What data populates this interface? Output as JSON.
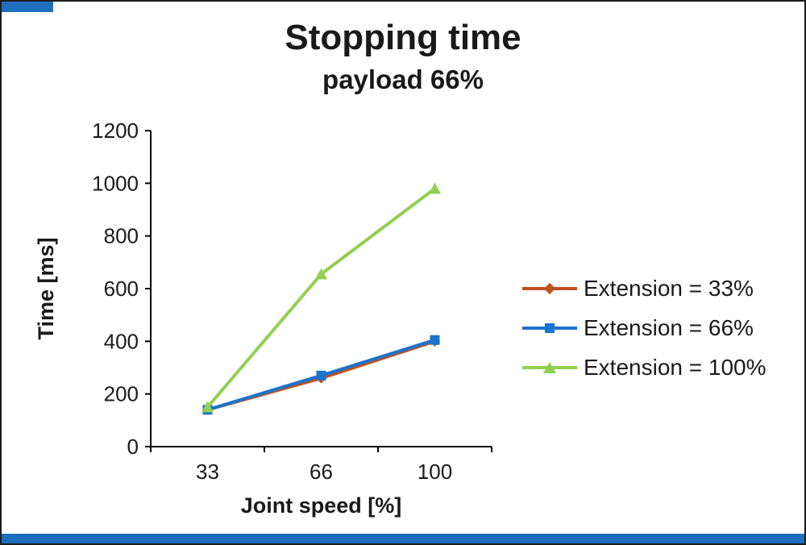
{
  "chart_data": {
    "type": "line",
    "title": "Stopping time",
    "subtitle": "payload 66%",
    "xlabel": "Joint speed [%]",
    "ylabel": "Time [ms]",
    "categories": [
      "33",
      "66",
      "100"
    ],
    "series": [
      {
        "name": "Extension = 33%",
        "values": [
          140,
          260,
          400
        ],
        "color": "#C0501E",
        "marker": "diamond"
      },
      {
        "name": "Extension = 66%",
        "values": [
          140,
          270,
          405
        ],
        "color": "#1B74CE",
        "marker": "square"
      },
      {
        "name": "Extension = 100%",
        "values": [
          150,
          655,
          980
        ],
        "color": "#92D050",
        "marker": "triangle"
      }
    ],
    "ylim": [
      0,
      1200
    ],
    "ytick_step": 200,
    "grid": false,
    "legend_position": "right"
  },
  "decorations": {
    "accent_color": "#1F6FBF"
  }
}
